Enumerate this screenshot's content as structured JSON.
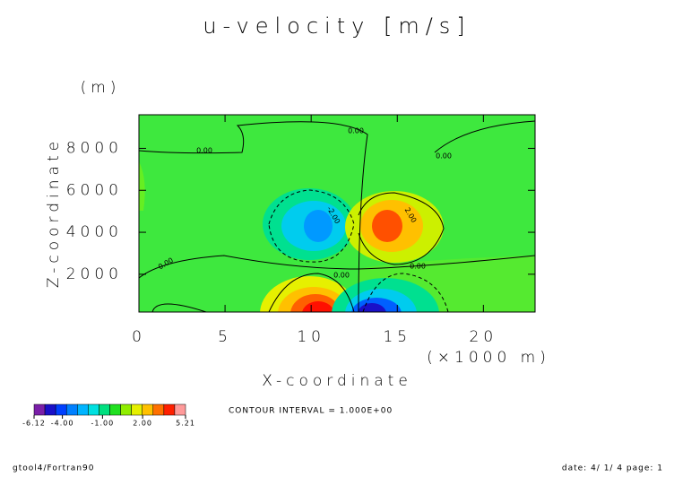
{
  "header": {
    "title": "u-velocity [m/s]",
    "y_unit": "(m)"
  },
  "chart_data": {
    "type": "contour",
    "xlabel": "X-coordinate",
    "ylabel": "Z-coordinate",
    "x_unit": "(×1000 m)",
    "xlim": [
      0,
      23
    ],
    "ylim": [
      200,
      9600
    ],
    "xticks": [
      0,
      5,
      10,
      15,
      20
    ],
    "yticks": [
      2000,
      4000,
      6000,
      8000
    ],
    "contour_labels": [
      "0.00",
      "0.00",
      "0.00",
      "0.00",
      "0.00",
      "0.00",
      "-2.00",
      "2.00"
    ],
    "colorbar": {
      "colors": [
        "#7a1fa8",
        "#1a10c8",
        "#0040ff",
        "#0080ff",
        "#00b4ff",
        "#00e0e0",
        "#00e080",
        "#20e020",
        "#90ee00",
        "#e6f000",
        "#ffc000",
        "#ff7000",
        "#ff2000",
        "#ff9a9a"
      ],
      "ticks": [
        {
          "value": -6.12,
          "label": "-6.12"
        },
        {
          "value": -4,
          "label": "-4.00"
        },
        {
          "value": -1,
          "label": "-1.00"
        },
        {
          "value": 2,
          "label": "2.00"
        },
        {
          "value": 5.21,
          "label": "5.21"
        }
      ]
    },
    "contour_interval": "CONTOUR INTERVAL = 1.000E+00"
  },
  "footer": {
    "left": "gtool4/Fortran90",
    "right": "date: 4/ 1/ 4 page: 1"
  }
}
